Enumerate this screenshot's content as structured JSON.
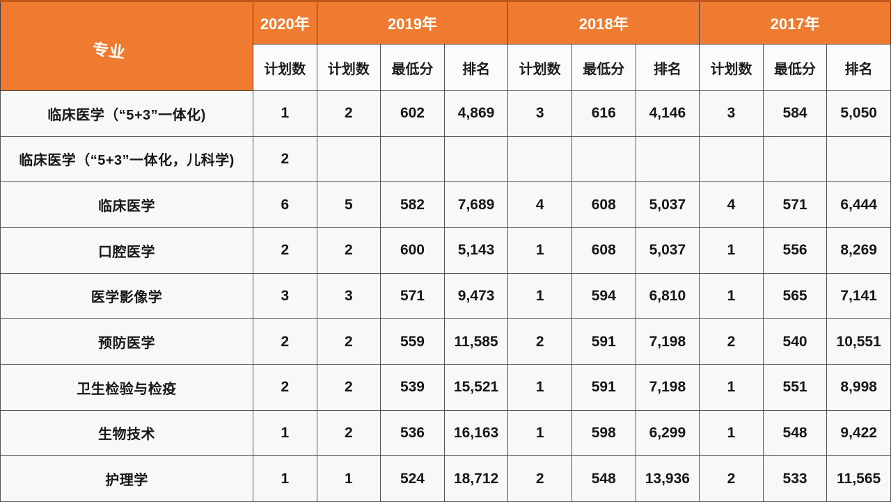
{
  "theme": {
    "header_orange": "#EE7B2F",
    "header_top_accent": "#C0571E",
    "header_text": "#FFFFFF",
    "grid_border": "#515357",
    "cell_background": "#F8F8F9",
    "body_text": "#161618"
  },
  "chart_data": {
    "type": "table",
    "corner_label": "专业",
    "year_groups": [
      {
        "label": "2020年"
      },
      {
        "label": "2019年"
      },
      {
        "label": "2018年"
      },
      {
        "label": "2017年"
      }
    ],
    "sub_headers": [
      "计划数",
      "计划数",
      "最低分",
      "排名",
      "计划数",
      "最低分",
      "排名",
      "计划数",
      "最低分",
      "排名"
    ],
    "rows": [
      {
        "major": "临床医学（“5+3”一体化)",
        "cells": [
          "1",
          "2",
          "602",
          "4,869",
          "3",
          "616",
          "4,146",
          "3",
          "584",
          "5,050"
        ]
      },
      {
        "major": "临床医学（“5+3”一体化，儿科学)",
        "cells": [
          "2",
          "",
          "",
          "",
          "",
          "",
          "",
          "",
          "",
          ""
        ]
      },
      {
        "major": "临床医学",
        "cells": [
          "6",
          "5",
          "582",
          "7,689",
          "4",
          "608",
          "5,037",
          "4",
          "571",
          "6,444"
        ]
      },
      {
        "major": "口腔医学",
        "cells": [
          "2",
          "2",
          "600",
          "5,143",
          "1",
          "608",
          "5,037",
          "1",
          "556",
          "8,269"
        ]
      },
      {
        "major": "医学影像学",
        "cells": [
          "3",
          "3",
          "571",
          "9,473",
          "1",
          "594",
          "6,810",
          "1",
          "565",
          "7,141"
        ]
      },
      {
        "major": "预防医学",
        "cells": [
          "2",
          "2",
          "559",
          "11,585",
          "2",
          "591",
          "7,198",
          "2",
          "540",
          "10,551"
        ]
      },
      {
        "major": "卫生检验与检疫",
        "cells": [
          "2",
          "2",
          "539",
          "15,521",
          "1",
          "591",
          "7,198",
          "1",
          "551",
          "8,998"
        ]
      },
      {
        "major": "生物技术",
        "cells": [
          "1",
          "2",
          "536",
          "16,163",
          "1",
          "598",
          "6,299",
          "1",
          "548",
          "9,422"
        ]
      },
      {
        "major": "护理学",
        "cells": [
          "1",
          "1",
          "524",
          "18,712",
          "2",
          "548",
          "13,936",
          "2",
          "533",
          "11,565"
        ]
      }
    ]
  }
}
